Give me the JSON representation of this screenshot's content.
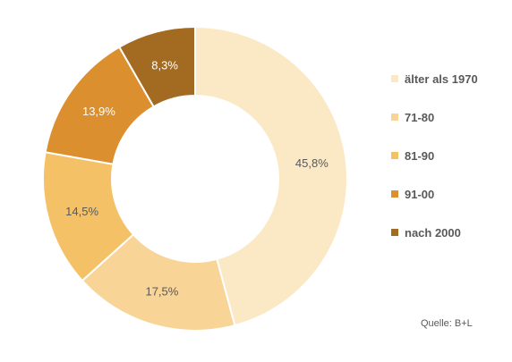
{
  "chart_data": {
    "type": "pie",
    "donut": true,
    "categories": [
      "älter als 1970",
      "71-80",
      "81-90",
      "91-00",
      "nach 2000"
    ],
    "values": [
      45.8,
      17.5,
      14.5,
      13.9,
      8.3
    ],
    "value_labels": [
      "45,8%",
      "17,5%",
      "14,5%",
      "13,9%",
      "8,3%"
    ],
    "colors": [
      "#FBE9C6",
      "#F8D497",
      "#F5C166",
      "#DC8F2E",
      "#A36A22"
    ],
    "label_colors": [
      "#595959",
      "#595959",
      "#595959",
      "#ffffff",
      "#ffffff"
    ],
    "legend_position": "right",
    "start_angle_deg": 0,
    "direction": "clockwise"
  },
  "source": "Quelle: B+L"
}
